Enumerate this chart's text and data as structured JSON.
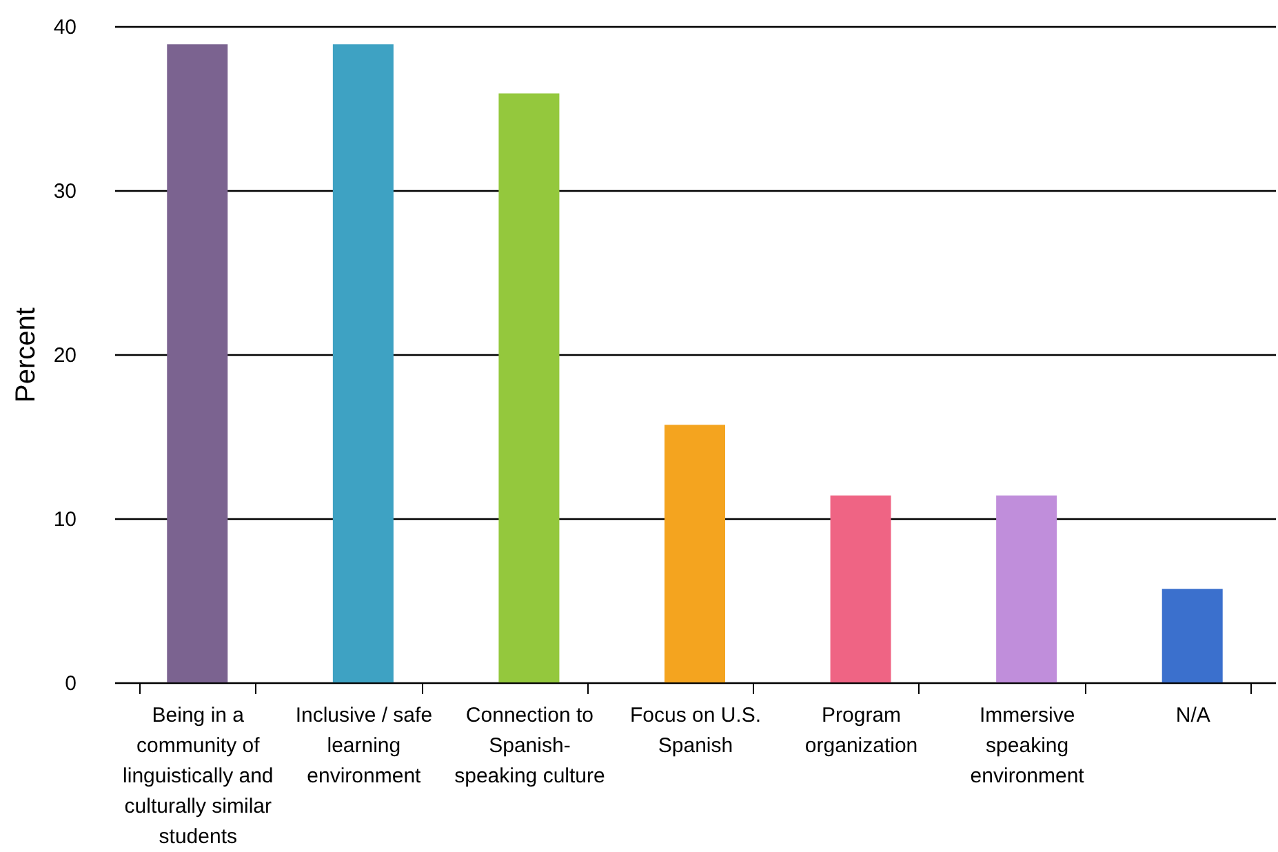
{
  "chart_data": {
    "type": "bar",
    "ylabel": "Percent",
    "categories": [
      "Being in a community of linguistically and culturally similar students",
      "Inclusive / safe learning environment",
      "Connection to Spanish-speaking culture",
      "Focus on U.S. Spanish",
      "Program organization",
      "Immersive speaking environment",
      "N/A"
    ],
    "values": [
      38.9,
      38.9,
      35.9,
      15.7,
      11.4,
      11.4,
      5.7
    ],
    "colors": [
      "#7b6390",
      "#3ea2c3",
      "#94c83d",
      "#f4a41f",
      "#ef6484",
      "#c08edb",
      "#3b70cd"
    ],
    "ylim": [
      0,
      40
    ],
    "yticks": [
      0,
      10,
      20,
      30,
      40
    ],
    "grid": "y"
  }
}
